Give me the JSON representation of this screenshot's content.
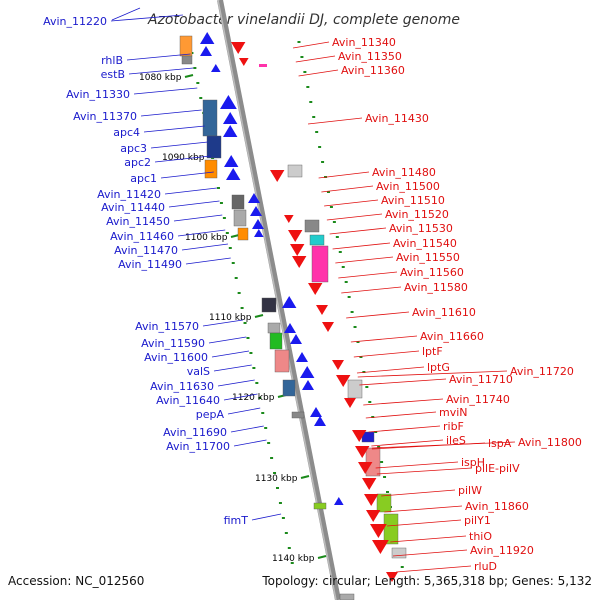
{
  "title": "Azotobacter vinelandii DJ, complete genome",
  "accession": "Accession: NC_012560",
  "summary": "Topology: circular; Length: 5,365,318 bp; Genes: 5,132",
  "colors": {
    "reverse_label": "#1a1acc",
    "forward_label": "#e01010",
    "backbone": "#8c8c8c",
    "tick": "#1b8a1b"
  },
  "kbp_labels": [
    "1080 kbp",
    "1090 kbp",
    "1100 kbp",
    "1110 kbp",
    "1120 kbp",
    "1130 kbp",
    "1140 kbp"
  ],
  "reverse_genes": [
    "Avin_11220",
    "rhlB",
    "estB",
    "Avin_11330",
    "Avin_11370",
    "apc4",
    "apc3",
    "apc2",
    "apc1",
    "Avin_11420",
    "Avin_11440",
    "Avin_11450",
    "Avin_11460",
    "Avin_11470",
    "Avin_11490",
    "Avin_11570",
    "Avin_11590",
    "Avin_11600",
    "valS",
    "Avin_11630",
    "Avin_11640",
    "pepA",
    "Avin_11690",
    "Avin_11700",
    "fimT"
  ],
  "forward_genes": [
    "Avin_11340",
    "Avin_11350",
    "Avin_11360",
    "Avin_11430",
    "Avin_11480",
    "Avin_11500",
    "Avin_11510",
    "Avin_11520",
    "Avin_11530",
    "Avin_11540",
    "Avin_11550",
    "Avin_11560",
    "Avin_11580",
    "Avin_11610",
    "Avin_11660",
    "lptF",
    "lptG",
    "Avin_11710",
    "Avin_11720",
    "Avin_11740",
    "mviN",
    "ribF",
    "ileS",
    "lspA",
    "Avin_11800",
    "ispH",
    "pilE-pilV",
    "pilW",
    "Avin_11860",
    "pilY1",
    "thiO",
    "Avin_11920",
    "rluD"
  ]
}
